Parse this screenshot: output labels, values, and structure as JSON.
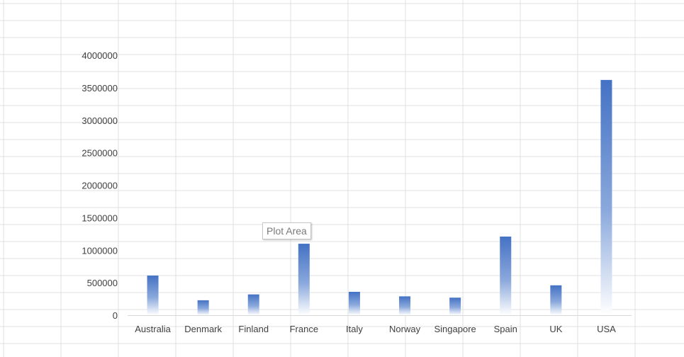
{
  "tooltip": "Plot Area",
  "colors": {
    "bar_top": "#4472C4",
    "bar_bottom": "#ffffff",
    "gridline": "#d9d9d9",
    "axis": "#d9d9d9"
  },
  "chart_data": {
    "type": "bar",
    "categories": [
      "Australia",
      "Denmark",
      "Finland",
      "France",
      "Italy",
      "Norway",
      "Singapore",
      "Spain",
      "UK",
      "USA"
    ],
    "values": [
      610000,
      230000,
      320000,
      1100000,
      360000,
      290000,
      270000,
      1210000,
      460000,
      3620000
    ],
    "yticks": [
      0,
      500000,
      1000000,
      1500000,
      2000000,
      2500000,
      3000000,
      3500000,
      4000000
    ],
    "ylim": [
      0,
      4000000
    ],
    "grid": false,
    "legend": "none",
    "title": "",
    "xlabel": "",
    "ylabel": ""
  }
}
